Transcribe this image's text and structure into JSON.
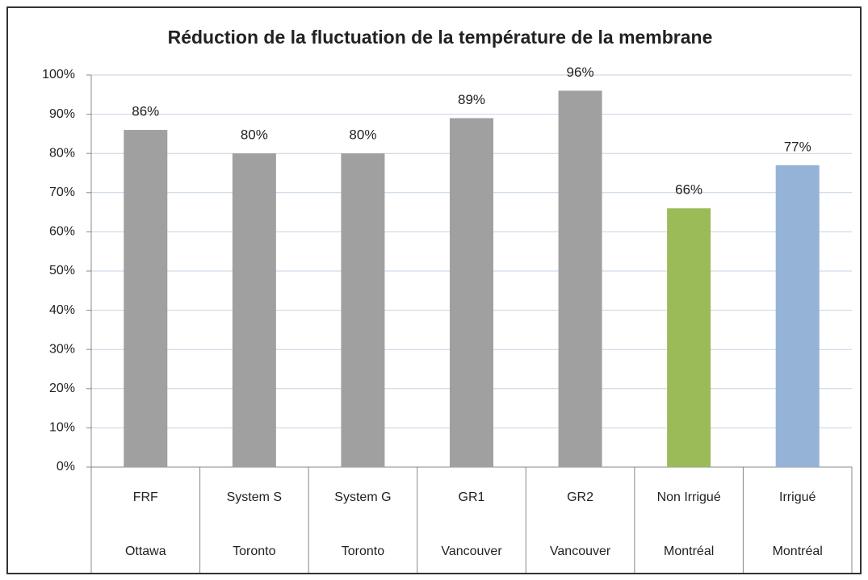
{
  "chart_data": {
    "type": "bar",
    "title": "Réduction de la fluctuation de la température de la membrane",
    "categories": [
      "FRF",
      "System S",
      "System G",
      "GR1",
      "GR2",
      "Non Irrigué",
      "Irrigué"
    ],
    "category_groups": [
      "Ottawa",
      "Toronto",
      "Toronto",
      "Vancouver",
      "Vancouver",
      "Montréal",
      "Montréal"
    ],
    "values": [
      86,
      80,
      80,
      89,
      96,
      66,
      77
    ],
    "value_labels": [
      "86%",
      "80%",
      "80%",
      "89%",
      "96%",
      "66%",
      "77%"
    ],
    "colors": [
      "#a0a0a0",
      "#a0a0a0",
      "#a0a0a0",
      "#a0a0a0",
      "#a0a0a0",
      "#9bbb59",
      "#95b3d7"
    ],
    "ylim": [
      0,
      100
    ],
    "yticks": [
      {
        "value": 0,
        "label": "0%"
      },
      {
        "value": 10,
        "label": "10%"
      },
      {
        "value": 20,
        "label": "20%"
      },
      {
        "value": 30,
        "label": "30%"
      },
      {
        "value": 40,
        "label": "40%"
      },
      {
        "value": 50,
        "label": "50%"
      },
      {
        "value": 60,
        "label": "60%"
      },
      {
        "value": 70,
        "label": "70%"
      },
      {
        "value": 80,
        "label": "80%"
      },
      {
        "value": 90,
        "label": "90%"
      },
      {
        "value": 100,
        "label": "100%"
      }
    ],
    "grid": true
  }
}
